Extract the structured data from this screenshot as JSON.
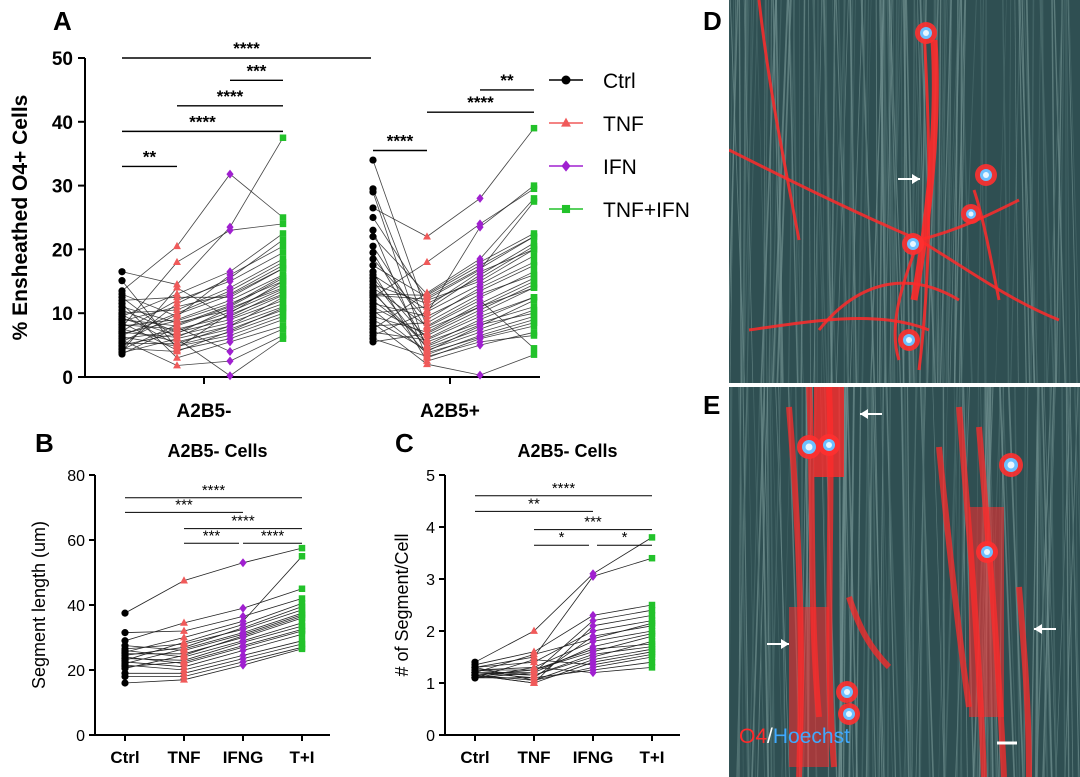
{
  "colors": {
    "ctrl": "#000000",
    "tnf": "#f05a5a",
    "ifn": "#a020d0",
    "tnf_ifn": "#22c22a",
    "o4_stain": "#ff2a2a",
    "hoechst_stain": "#3fa9ff",
    "micrograph_background": "#2f4f52"
  },
  "panels": {
    "A": {
      "letter": "A"
    },
    "B": {
      "letter": "B"
    },
    "C": {
      "letter": "C"
    },
    "D": {
      "letter": "D"
    },
    "E": {
      "letter": "E"
    }
  },
  "micrograph_D": {
    "description_icon": "fluorescence-micrograph",
    "arrow_count": 1
  },
  "micrograph_E": {
    "description_icon": "fluorescence-micrograph",
    "arrow_count": 3,
    "stain_label_o4": "O4",
    "stain_label_separator": "/",
    "stain_label_hoechst": "Hoechst"
  },
  "chart_data": [
    {
      "id": "A",
      "type": "scatter",
      "title": "",
      "ylabel": "% Ensheathed O4+ Cells",
      "xlabel": "",
      "ylim": [
        0,
        50
      ],
      "yticks": [
        0,
        10,
        20,
        30,
        40,
        50
      ],
      "groups": [
        "A2B5-",
        "A2B5+"
      ],
      "legend": {
        "placement": "right",
        "entries": [
          {
            "name": "Ctrl",
            "marker": "circle",
            "color": "#000000"
          },
          {
            "name": "TNF",
            "marker": "triangle",
            "color": "#f05a5a"
          },
          {
            "name": "IFN",
            "marker": "diamond",
            "color": "#a020d0"
          },
          {
            "name": "TNF+IFN",
            "marker": "square",
            "color": "#22c22a"
          }
        ]
      },
      "significance": [
        {
          "group": "A2B5-",
          "from": 0,
          "to": 1,
          "label": "**",
          "y": 33
        },
        {
          "group": "A2B5-",
          "from": 0,
          "to": 3,
          "label": "****",
          "y": 38.5
        },
        {
          "group": "A2B5-",
          "from": 1,
          "to": 3,
          "label": "****",
          "y": 42.5
        },
        {
          "group": "A2B5-",
          "from": 2,
          "to": 3,
          "label": "***",
          "y": 46.5
        },
        {
          "group": "both",
          "from": 0,
          "to": 0,
          "label": "****",
          "y": 50
        },
        {
          "group": "A2B5+",
          "from": 0,
          "to": 1,
          "label": "****",
          "y": 35.5
        },
        {
          "group": "A2B5+",
          "from": 1,
          "to": 3,
          "label": "****",
          "y": 41.5
        },
        {
          "group": "A2B5+",
          "from": 2,
          "to": 3,
          "label": "**",
          "y": 45
        }
      ],
      "series": {
        "A2B5-": {
          "Ctrl": [
            16.5,
            15.1,
            13.5,
            13.0,
            12.5,
            12.0,
            11.5,
            11.0,
            10.5,
            10.0,
            9.8,
            9.5,
            9.2,
            9.0,
            8.8,
            8.5,
            8.2,
            8.0,
            7.8,
            7.5,
            7.2,
            7.0,
            6.8,
            6.5,
            6.3,
            6.0,
            5.8,
            5.5,
            5.3,
            5.0,
            4.8,
            4.5,
            4.3,
            4.0,
            3.8,
            3.6
          ],
          "TNF": [
            14.5,
            4.5,
            20.5,
            9.5,
            6.0,
            12.5,
            3.0,
            8.5,
            7.0,
            10.5,
            5.0,
            13.0,
            6.5,
            8.0,
            11.0,
            4.2,
            7.5,
            9.0,
            18.0,
            5.5,
            12.0,
            6.2,
            8.8,
            10.0,
            4.8,
            7.2,
            1.8,
            9.8,
            5.2,
            6.8,
            11.5,
            4.0,
            8.2,
            14.0,
            6.0,
            7.8
          ],
          "IFN": [
            23.5,
            10.0,
            31.8,
            16.0,
            8.0,
            12.5,
            5.5,
            10.5,
            9.0,
            14.0,
            7.0,
            16.5,
            8.5,
            11.0,
            13.0,
            6.0,
            9.5,
            12.0,
            23.0,
            7.5,
            15.0,
            9.8,
            11.5,
            13.5,
            6.5,
            10.2,
            2.5,
            12.8,
            8.0,
            10.8,
            15.5,
            7.2,
            11.2,
            9.2,
            0.2,
            4.0
          ],
          "TNF+IFN": [
            37.5,
            15.0,
            25.0,
            20.5,
            11.0,
            17.0,
            8.0,
            14.5,
            12.0,
            18.5,
            10.0,
            22.5,
            11.5,
            15.5,
            17.5,
            9.0,
            13.5,
            16.0,
            24.0,
            10.5,
            19.5,
            13.0,
            15.0,
            18.0,
            9.5,
            13.8,
            6.5,
            17.0,
            12.5,
            14.0,
            21.5,
            10.8,
            15.8,
            12.8,
            6.0,
            7.5
          ]
        },
        "A2B5+": {
          "Ctrl": [
            34.0,
            29.0,
            26.5,
            25.0,
            23.0,
            22.0,
            20.5,
            19.5,
            18.5,
            17.5,
            16.5,
            16.0,
            15.5,
            15.0,
            14.5,
            14.0,
            13.5,
            13.0,
            12.5,
            12.0,
            11.5,
            11.0,
            10.5,
            10.0,
            9.5,
            9.0,
            8.5,
            8.0,
            7.5,
            7.0,
            6.5,
            6.0,
            5.5,
            12.8,
            13.2,
            29.5
          ],
          "TNF": [
            10.0,
            4.0,
            22.0,
            12.0,
            3.0,
            13.0,
            7.5,
            5.0,
            9.0,
            12.5,
            2.5,
            10.5,
            6.0,
            4.5,
            11.5,
            8.0,
            3.5,
            12.8,
            18.0,
            5.5,
            9.5,
            6.5,
            3.8,
            11.0,
            7.0,
            4.2,
            2.0,
            8.5,
            13.2,
            5.8,
            10.2,
            3.2,
            6.8,
            12.2,
            4.8,
            7.8
          ],
          "IFN": [
            23.5,
            8.0,
            28.0,
            15.0,
            6.0,
            18.0,
            11.0,
            9.0,
            14.0,
            17.0,
            5.0,
            16.0,
            10.0,
            7.5,
            15.5,
            12.5,
            6.5,
            17.5,
            24.0,
            8.5,
            13.5,
            10.5,
            6.2,
            16.5,
            11.5,
            7.0,
            0.3,
            13.0,
            18.5,
            9.5,
            14.5,
            5.5,
            11.0,
            16.8,
            8.2,
            12.0
          ],
          "TNF+IFN": [
            30.0,
            12.0,
            39.0,
            20.0,
            8.0,
            22.5,
            15.0,
            12.5,
            18.0,
            22.0,
            7.0,
            21.0,
            14.0,
            10.5,
            20.5,
            16.5,
            9.0,
            22.0,
            29.5,
            11.0,
            17.5,
            14.5,
            8.5,
            20.0,
            15.5,
            9.5,
            3.5,
            16.0,
            28.0,
            12.5,
            19.0,
            6.5,
            14.0,
            27.5,
            10.0,
            4.5
          ]
        }
      }
    },
    {
      "id": "B",
      "type": "scatter",
      "title": "A2B5- Cells",
      "ylabel": "Segment length (um)",
      "xlabel": "",
      "categories": [
        "Ctrl",
        "TNF",
        "IFNG",
        "T+I"
      ],
      "ylim": [
        0,
        80
      ],
      "yticks": [
        0,
        20,
        40,
        60,
        80
      ],
      "significance": [
        {
          "from": 0,
          "to": 3,
          "label": "****",
          "y": 73
        },
        {
          "from": 0,
          "to": 2,
          "label": "***",
          "y": 68.5
        },
        {
          "from": 1,
          "to": 3,
          "label": "****",
          "y": 63.5
        },
        {
          "from": 1,
          "to": 2,
          "label": "***",
          "y": 59
        },
        {
          "from": 2,
          "to": 3,
          "label": "****",
          "y": 59
        }
      ],
      "series": [
        {
          "name": "Ctrl",
          "marker": "circle",
          "color": "#000000",
          "values": [
            37.5,
            31.5,
            29.0,
            27.5,
            26.5,
            26.0,
            25.5,
            25.0,
            24.5,
            24.0,
            23.5,
            23.0,
            22.5,
            22.0,
            21.5,
            21.0,
            20.5,
            19.0,
            18.0,
            16.0
          ]
        },
        {
          "name": "TNF",
          "marker": "triangle",
          "color": "#f05a5a",
          "values": [
            47.5,
            32.0,
            34.5,
            26.0,
            28.0,
            24.0,
            30.0,
            25.0,
            27.0,
            22.0,
            23.0,
            28.5,
            21.0,
            26.5,
            20.0,
            22.5,
            24.5,
            19.0,
            18.0,
            17.0
          ]
        },
        {
          "name": "IFNG",
          "marker": "diamond",
          "color": "#a020d0",
          "values": [
            53.0,
            36.5,
            39.0,
            31.0,
            32.5,
            29.0,
            35.0,
            30.0,
            33.0,
            27.0,
            28.5,
            34.0,
            26.0,
            31.5,
            24.5,
            27.5,
            30.5,
            23.5,
            22.5,
            21.5
          ]
        },
        {
          "name": "T+I",
          "marker": "square",
          "color": "#22c22a",
          "values": [
            57.5,
            42.0,
            45.0,
            37.0,
            38.5,
            34.5,
            55.0,
            36.0,
            39.5,
            32.0,
            33.5,
            40.5,
            31.0,
            37.5,
            29.0,
            32.5,
            36.5,
            28.0,
            27.0,
            26.5
          ]
        }
      ]
    },
    {
      "id": "C",
      "type": "scatter",
      "title": "A2B5- Cells",
      "ylabel": "# of Segment/Cell",
      "xlabel": "",
      "categories": [
        "Ctrl",
        "TNF",
        "IFNG",
        "T+I"
      ],
      "ylim": [
        0,
        5
      ],
      "yticks": [
        0,
        1,
        2,
        3,
        4,
        5
      ],
      "significance": [
        {
          "from": 0,
          "to": 3,
          "label": "****",
          "y": 4.6
        },
        {
          "from": 0,
          "to": 2,
          "label": "**",
          "y": 4.3
        },
        {
          "from": 1,
          "to": 3,
          "label": "***",
          "y": 3.95
        },
        {
          "from": 1,
          "to": 2,
          "label": "*",
          "y": 3.65
        },
        {
          "from": 2,
          "to": 3,
          "label": "*",
          "y": 3.65
        }
      ],
      "series": [
        {
          "name": "Ctrl",
          "marker": "circle",
          "color": "#000000",
          "values": [
            1.4,
            1.35,
            1.3,
            1.3,
            1.25,
            1.25,
            1.2,
            1.2,
            1.2,
            1.15,
            1.15,
            1.15,
            1.1,
            1.1,
            1.1,
            1.1,
            1.2,
            1.25,
            1.3,
            1.15
          ]
        },
        {
          "name": "TNF",
          "marker": "triangle",
          "color": "#f05a5a",
          "values": [
            2.0,
            1.6,
            1.5,
            1.4,
            1.3,
            1.25,
            1.2,
            1.15,
            1.1,
            1.05,
            1.0,
            1.0,
            1.1,
            1.2,
            1.3,
            1.45,
            1.55,
            1.15,
            1.05,
            1.25
          ]
        },
        {
          "name": "IFNG",
          "marker": "diamond",
          "color": "#a020d0",
          "values": [
            3.1,
            2.3,
            3.05,
            2.0,
            1.8,
            1.6,
            2.2,
            1.5,
            1.9,
            1.3,
            1.4,
            2.1,
            1.25,
            1.7,
            1.2,
            1.35,
            1.85,
            1.55,
            1.45,
            1.65
          ]
        },
        {
          "name": "T+I",
          "marker": "square",
          "color": "#22c22a",
          "values": [
            3.8,
            2.5,
            3.4,
            2.2,
            2.0,
            1.9,
            2.4,
            1.8,
            2.1,
            1.5,
            1.6,
            2.3,
            1.4,
            1.95,
            1.3,
            1.55,
            2.15,
            1.7,
            1.65,
            1.75
          ]
        }
      ]
    }
  ]
}
